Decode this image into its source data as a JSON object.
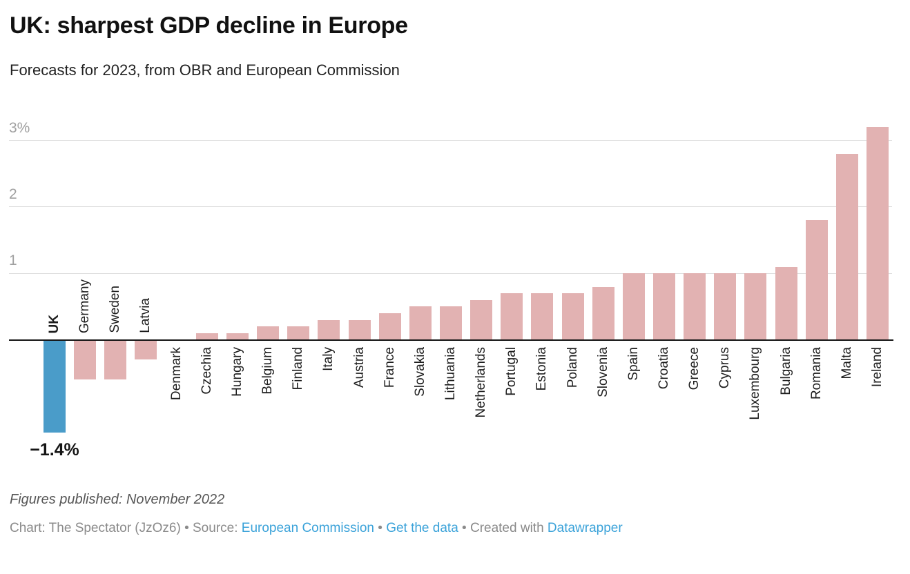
{
  "header": {
    "title": "UK: sharpest GDP decline in Europe",
    "subtitle": "Forecasts for 2023, from OBR and European Commission"
  },
  "chart_data": {
    "type": "bar",
    "title": "UK: sharpest GDP decline in Europe",
    "subtitle": "Forecasts for 2023, from OBR and European Commission",
    "value_unit": "%",
    "categories": [
      "UK",
      "Germany",
      "Sweden",
      "Latvia",
      "Denmark",
      "Czechia",
      "Hungary",
      "Belgium",
      "Finland",
      "Italy",
      "Austria",
      "France",
      "Slovakia",
      "Lithuania",
      "Netherlands",
      "Portugal",
      "Estonia",
      "Poland",
      "Slovenia",
      "Spain",
      "Croatia",
      "Greece",
      "Cyprus",
      "Luxembourg",
      "Bulgaria",
      "Romania",
      "Malta",
      "Ireland"
    ],
    "values": [
      -1.4,
      -0.6,
      -0.6,
      -0.3,
      0.0,
      0.1,
      0.1,
      0.2,
      0.2,
      0.3,
      0.3,
      0.4,
      0.5,
      0.5,
      0.6,
      0.7,
      0.7,
      0.7,
      0.8,
      1.0,
      1.0,
      1.0,
      1.0,
      1.0,
      1.1,
      1.8,
      2.8,
      3.2
    ],
    "highlight": {
      "category": "UK",
      "color": "#4a9cc9",
      "label": "−1.4%"
    },
    "bar_color": "#e2b2b2",
    "axis_color": "#151515",
    "grid_color": "#dedede",
    "tick_label_color": "#a0a0a0",
    "y_axis": {
      "ticks": [
        1,
        2,
        3
      ],
      "tick_labels": [
        "1",
        "2",
        "3%"
      ],
      "range": [
        -1.5,
        3.3
      ],
      "grid": true
    },
    "legend": "none",
    "label_rotation": "vertical-bottom-to-top"
  },
  "footer": {
    "note": "Figures published: November 2022",
    "attribution": {
      "link_color": "#3aa2d9",
      "segments": [
        {
          "text": "Chart: The Spectator (JzOz6) • Source: ",
          "link": false
        },
        {
          "text": "European Commission",
          "link": true
        },
        {
          "text": " • ",
          "link": false
        },
        {
          "text": "Get the data",
          "link": true
        },
        {
          "text": " • Created with ",
          "link": false
        },
        {
          "text": "Datawrapper",
          "link": true
        }
      ]
    }
  }
}
